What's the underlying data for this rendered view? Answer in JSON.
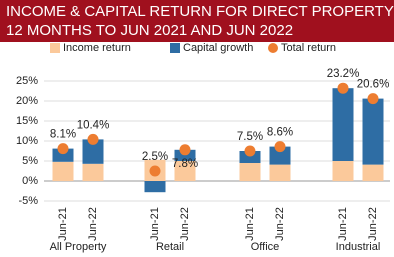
{
  "chart_data": {
    "type": "bar",
    "stacked": true,
    "title": "INCOME & CAPITAL RETURN FOR DIRECT PROPERTY",
    "subtitle": "12 MONTHS TO JUN 2021 AND JUN 2022",
    "header_color": "#a0101e",
    "categories": [
      "Jun-21",
      "Jun-22",
      "Jun-21",
      "Jun-22",
      "Jun-21",
      "Jun-22",
      "Jun-21",
      "Jun-22"
    ],
    "groups": [
      "All Property",
      "Retail",
      "Office",
      "Industrial"
    ],
    "series": [
      {
        "name": "Income return",
        "color": "#fbc99b",
        "values": [
          4.8,
          4.3,
          5.3,
          5.0,
          4.5,
          4.1,
          5.0,
          4.1
        ]
      },
      {
        "name": "Capital growth",
        "color": "#2e6da4",
        "values": [
          3.3,
          6.1,
          -2.8,
          2.8,
          3.0,
          4.5,
          18.2,
          16.5
        ]
      },
      {
        "name": "Total return",
        "color": "#ed7d31",
        "type": "scatter",
        "values": [
          8.1,
          10.4,
          2.5,
          7.8,
          7.5,
          8.6,
          23.2,
          20.6
        ],
        "value_labels": [
          "8.1%",
          "10.4%",
          "2.5%",
          "7.8%",
          "7.5%",
          "8.6%",
          "23.2%",
          "20.6%"
        ]
      }
    ],
    "ylim": [
      -5,
      25
    ],
    "yticks": [
      {
        "value": -5,
        "label": "-5%"
      },
      {
        "value": 0,
        "label": "0%"
      },
      {
        "value": 5,
        "label": "5%"
      },
      {
        "value": 10,
        "label": "10%"
      },
      {
        "value": 15,
        "label": "15%"
      },
      {
        "value": 20,
        "label": "20%"
      },
      {
        "value": 25,
        "label": "25%"
      }
    ],
    "grid": true
  }
}
